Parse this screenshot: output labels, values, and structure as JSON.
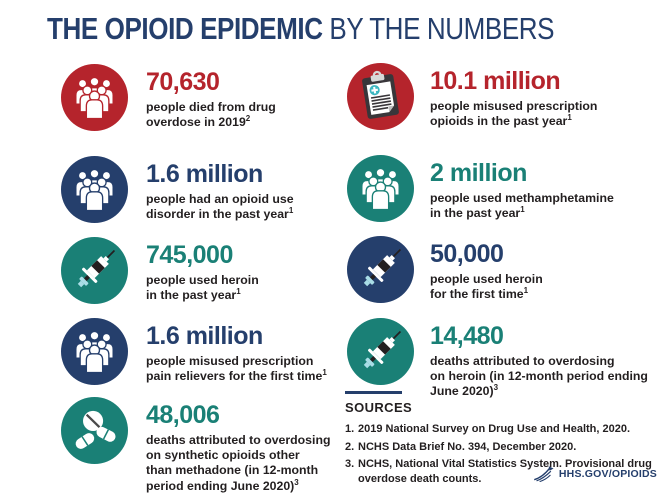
{
  "title": {
    "bold": "THE OPIOID EPIDEMIC",
    "regular": " BY THE NUMBERS"
  },
  "palette": {
    "navy": "#253f6c",
    "red": "#b5242c",
    "teal": "#1a8076",
    "text": "#231f20"
  },
  "stats": {
    "left": [
      {
        "icon": "people-group-icon",
        "color": "red",
        "number": "70,630",
        "lines": [
          "people died from drug",
          "overdose in 2019"
        ],
        "sup": "2"
      },
      {
        "icon": "people-group-icon",
        "color": "navy",
        "number": "1.6 million",
        "lines": [
          "people had an opioid use",
          "disorder in the past year"
        ],
        "sup": "1"
      },
      {
        "icon": "syringe-icon",
        "color": "teal",
        "number": "745,000",
        "lines": [
          "people used heroin",
          "in the past year"
        ],
        "sup": "1"
      },
      {
        "icon": "people-group-icon",
        "color": "navy",
        "number": "1.6 million",
        "lines": [
          "people misused prescription",
          "pain relievers for the first time"
        ],
        "sup": "1"
      },
      {
        "icon": "pills-icon",
        "color": "teal",
        "number": "48,006",
        "lines": [
          "deaths attributed to overdosing",
          "on synthetic opioids other",
          "than methadone (in 12-month",
          "period ending June 2020)"
        ],
        "sup": "3"
      }
    ],
    "right": [
      {
        "icon": "clipboard-icon",
        "color": "red",
        "number": "10.1 million",
        "lines": [
          "people misused prescription",
          "opioids in the past year"
        ],
        "sup": "1"
      },
      {
        "icon": "people-group-icon",
        "color": "teal",
        "number": "2 million",
        "lines": [
          "people used methamphetamine",
          "in the past year"
        ],
        "sup": "1"
      },
      {
        "icon": "syringe-icon",
        "color": "navy",
        "number": "50,000",
        "lines": [
          "people used heroin",
          "for the first time"
        ],
        "sup": "1"
      },
      {
        "icon": "syringe-icon",
        "color": "teal",
        "number": "14,480",
        "lines": [
          "deaths attributed to overdosing",
          "on heroin (in 12-month period ending",
          "June 2020)"
        ],
        "sup": "3"
      }
    ]
  },
  "sources": {
    "heading": "SOURCES",
    "items": [
      {
        "num": "1.",
        "text": "2019 National Survey on Drug Use and Health, 2020."
      },
      {
        "num": "2.",
        "text": "NCHS Data Brief No. 394, December 2020."
      },
      {
        "num": "3.",
        "text": "NCHS, National Vital Statistics System. Provisional drug overdose death counts."
      }
    ]
  },
  "footer": {
    "site": "HHS.GOV/OPIOIDS"
  }
}
